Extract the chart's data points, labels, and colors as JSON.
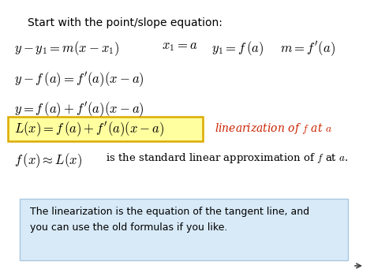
{
  "background_color": "#ffffff",
  "text_color": "#000000",
  "annotation_color": "#cc2200",
  "highlight_box_fill": "#ffffa0",
  "highlight_box_edge": "#ddaa00",
  "info_box_fill": "#d8eaf8",
  "info_box_edge": "#aac8e0",
  "arrow_color": "#444444",
  "title": "Start with the point/slope equation:",
  "eq1a": "$y - y_1 = m(x - x_1)$",
  "eq1b": "$x_1 = a$",
  "eq1c": "$y_1 = f\\,(a)$",
  "eq1d": "$m = f'(a)$",
  "eq2": "$y - f\\,(a) = f'(a)(x - a)$",
  "eq3": "$y = f\\,(a) + f'(a)(x - a)$",
  "eq4": "$L(x) = f\\,(a) + f'(a)(x - a)$",
  "eq4_ann": "linearization of $f$ at $a$",
  "eq5a": "$f\\,(x) \\approx L(x)$",
  "eq5b": " is the standard linear approximation of $f$ at $a$.",
  "info1": "The linearization is the equation of the tangent line, and",
  "info2": "you can use the old formulas if you like.",
  "title_fs": 10,
  "eq_fs": 12,
  "ann_fs": 10,
  "info_fs": 9,
  "eq5b_fs": 9.5
}
